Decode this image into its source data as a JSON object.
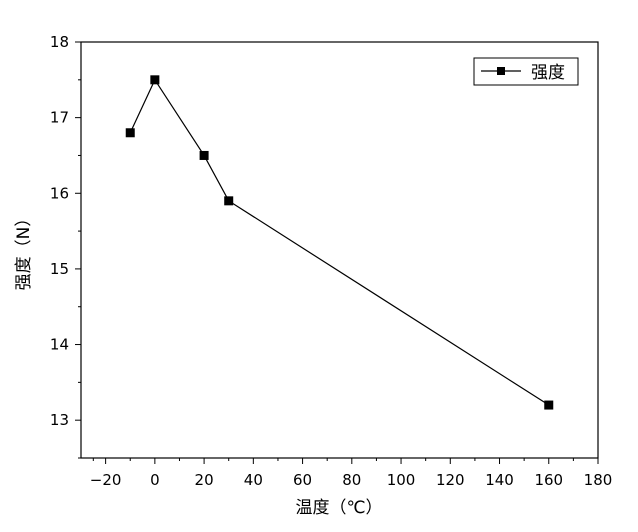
{
  "chart_data": {
    "type": "line",
    "title": "",
    "xlabel": "温度（℃）",
    "ylabel": "强度（N）",
    "xlim": [
      -30,
      180
    ],
    "ylim": [
      12.5,
      18
    ],
    "xticks": [
      -20,
      0,
      20,
      40,
      60,
      80,
      100,
      120,
      140,
      160,
      180
    ],
    "yticks": [
      13,
      14,
      15,
      16,
      17,
      18
    ],
    "grid": false,
    "legend_position": "top-right",
    "series": [
      {
        "name": "强度",
        "color": "#000000",
        "marker": "square",
        "points": [
          {
            "x": -10,
            "y": 16.8
          },
          {
            "x": 0,
            "y": 17.5
          },
          {
            "x": 20,
            "y": 16.5
          },
          {
            "x": 30,
            "y": 15.9
          },
          {
            "x": 160,
            "y": 13.2
          }
        ]
      }
    ]
  }
}
